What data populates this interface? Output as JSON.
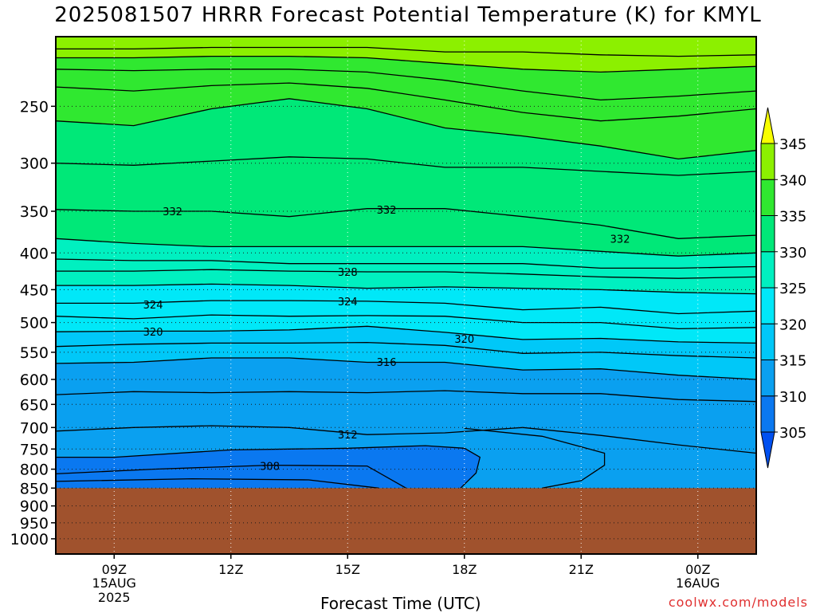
{
  "chart_data": {
    "type": "contour",
    "title": "2025081507 HRRR Forecast Potential Temperature (K) for KMYL",
    "xlabel": "Forecast Time (UTC)",
    "ylabel": "",
    "x_axis": {
      "ticks": [
        {
          "hour": 9,
          "label": "09Z",
          "sub": "15AUG",
          "sub2": "2025"
        },
        {
          "hour": 12,
          "label": "12Z",
          "sub": "",
          "sub2": ""
        },
        {
          "hour": 15,
          "label": "15Z",
          "sub": "",
          "sub2": ""
        },
        {
          "hour": 18,
          "label": "18Z",
          "sub": "",
          "sub2": ""
        },
        {
          "hour": 21,
          "label": "21Z",
          "sub": "",
          "sub2": ""
        },
        {
          "hour": 24,
          "label": "00Z",
          "sub": "16AUG",
          "sub2": ""
        }
      ],
      "range_hours": [
        7.5,
        25.5
      ]
    },
    "y_axis": {
      "unit": "hPa",
      "ticks": [
        250,
        300,
        350,
        400,
        450,
        500,
        550,
        600,
        650,
        700,
        750,
        800,
        850,
        900,
        950,
        1000
      ],
      "range": [
        1050,
        200
      ],
      "scale": "log"
    },
    "surface_pressure": 850,
    "colorbar": {
      "levels": [
        305,
        310,
        315,
        320,
        325,
        330,
        335,
        340,
        345
      ],
      "colors": [
        "#0050f0",
        "#0a78f0",
        "#0aa0f0",
        "#00c8f8",
        "#00e8f8",
        "#00f0c0",
        "#00e878",
        "#30e830",
        "#8cf000",
        "#c4fc00",
        "#f8ff00"
      ]
    },
    "contour_labels": [
      {
        "value": "332",
        "hour": 10.5,
        "p": 350
      },
      {
        "value": "332",
        "hour": 16.0,
        "p": 348
      },
      {
        "value": "332",
        "hour": 22.0,
        "p": 382
      },
      {
        "value": "328",
        "hour": 15.0,
        "p": 425
      },
      {
        "value": "324",
        "hour": 10.0,
        "p": 472
      },
      {
        "value": "324",
        "hour": 15.0,
        "p": 467
      },
      {
        "value": "320",
        "hour": 10.0,
        "p": 515
      },
      {
        "value": "320",
        "hour": 18.0,
        "p": 527
      },
      {
        "value": "316",
        "hour": 16.0,
        "p": 567
      },
      {
        "value": "312",
        "hour": 15.0,
        "p": 716
      },
      {
        "value": "308",
        "hour": 13.0,
        "p": 792
      }
    ],
    "contours": [
      {
        "theta": 344,
        "p": [
          200,
          200,
          200,
          200,
          200,
          200,
          200,
          200,
          200,
          200
        ]
      },
      {
        "theta": 342,
        "p": [
          208,
          208,
          207,
          207,
          207,
          210,
          210,
          212,
          213,
          212
        ]
      },
      {
        "theta": 340,
        "p": [
          214,
          214,
          213,
          213,
          214,
          218,
          222,
          224,
          222,
          220
        ]
      },
      {
        "theta": 338,
        "p": [
          222,
          223,
          222,
          222,
          224,
          230,
          238,
          245,
          242,
          238
        ]
      },
      {
        "theta": 336,
        "p": [
          235,
          238,
          234,
          232,
          236,
          245,
          255,
          262,
          258,
          252
        ]
      },
      {
        "theta": 335,
        "p": [
          262,
          266,
          252,
          244,
          252,
          268,
          275,
          284,
          296,
          288
        ]
      },
      {
        "theta": 334,
        "p": [
          300,
          302,
          298,
          294,
          296,
          304,
          304,
          308,
          312,
          308
        ]
      },
      {
        "theta": 332,
        "p": [
          348,
          350,
          350,
          356,
          347,
          347,
          356,
          366,
          382,
          378
        ]
      },
      {
        "theta": 330,
        "p": [
          382,
          388,
          392,
          392,
          392,
          392,
          392,
          398,
          404,
          400
        ]
      },
      {
        "theta": 329,
        "p": [
          408,
          410,
          410,
          414,
          414,
          414,
          414,
          420,
          420,
          418
        ]
      },
      {
        "theta": 328,
        "p": [
          424,
          424,
          422,
          424,
          425,
          425,
          428,
          432,
          434,
          432
        ]
      },
      {
        "theta": 326,
        "p": [
          444,
          444,
          442,
          444,
          448,
          446,
          448,
          450,
          454,
          456
        ]
      },
      {
        "theta": 324,
        "p": [
          470,
          470,
          466,
          466,
          467,
          470,
          480,
          476,
          486,
          482
        ]
      },
      {
        "theta": 322,
        "p": [
          490,
          494,
          488,
          490,
          489,
          490,
          500,
          500,
          510,
          508
        ]
      },
      {
        "theta": 320,
        "p": [
          515,
          514,
          514,
          512,
          506,
          516,
          528,
          526,
          532,
          534
        ]
      },
      {
        "theta": 318,
        "p": [
          540,
          536,
          534,
          534,
          533,
          538,
          552,
          550,
          556,
          560
        ]
      },
      {
        "theta": 316,
        "p": [
          570,
          568,
          560,
          560,
          568,
          568,
          582,
          580,
          592,
          600
        ]
      },
      {
        "theta": 314,
        "p": [
          630,
          624,
          626,
          624,
          626,
          622,
          628,
          628,
          640,
          644
        ]
      },
      {
        "theta": 312,
        "p": [
          708,
          700,
          696,
          700,
          716,
          712,
          700,
          718,
          740,
          760
        ]
      }
    ]
  },
  "credit": "coolwx.com/models"
}
